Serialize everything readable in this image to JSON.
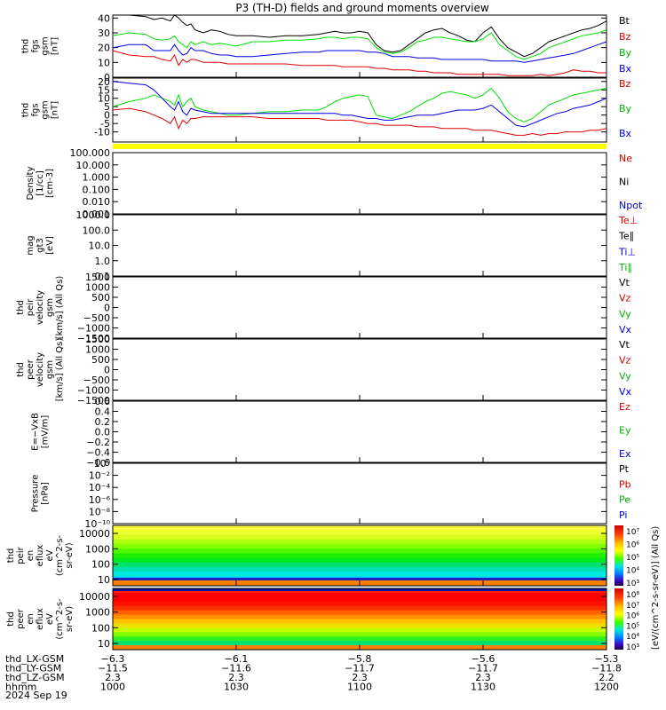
{
  "title": "P3 (TH-D) fields and ground moments overview",
  "date_label": "2024 Sep 19",
  "colors": {
    "black": "#000000",
    "red": "#e00000",
    "green": "#00e000",
    "blue": "#0000e0",
    "yellow": "#ffff00",
    "blue_label": "#0000d0",
    "green_label": "#00b000",
    "red_label": "#d00000"
  },
  "chart_data": [
    {
      "type": "line",
      "id": "fgs-total",
      "ylabel": [
        "thd",
        "fgs",
        "gsm",
        "[nT]"
      ],
      "ylim": [
        0,
        42
      ],
      "ticks": [
        "40",
        "30",
        "20",
        "10",
        "0"
      ],
      "tick_values": [
        40,
        30,
        20,
        10,
        0
      ],
      "legend": [
        "Bt",
        "Bz",
        "By",
        "Bx"
      ],
      "legend_colors": [
        "black",
        "red",
        "green",
        "blue"
      ],
      "x_minutes": [
        0,
        4,
        8,
        10,
        12,
        14,
        15,
        16,
        17,
        18,
        19,
        20,
        22,
        24,
        26,
        28,
        30,
        34,
        38,
        42,
        46,
        50,
        52,
        54,
        56,
        58,
        60,
        62,
        64,
        66,
        68,
        70,
        72,
        74,
        76,
        78,
        80,
        82,
        84,
        86,
        88,
        90,
        92,
        94,
        96,
        98,
        100,
        102,
        104,
        106,
        108,
        110,
        112,
        114,
        116,
        118,
        120
      ],
      "series": [
        {
          "name": "Bt",
          "color": "black",
          "values": [
            42,
            42,
            41,
            39,
            40,
            38,
            42,
            40,
            37,
            35,
            36,
            32,
            30,
            32,
            31,
            29,
            28,
            28,
            27,
            28,
            28,
            29,
            30,
            31,
            30,
            30,
            31,
            30,
            22,
            18,
            17,
            18,
            22,
            26,
            30,
            32,
            33,
            30,
            28,
            25,
            24,
            30,
            34,
            26,
            20,
            17,
            14,
            16,
            20,
            24,
            26,
            28,
            30,
            32,
            33,
            35,
            38
          ]
        },
        {
          "name": "By",
          "color": "green",
          "values": [
            28,
            30,
            29,
            26,
            25,
            26,
            28,
            24,
            22,
            20,
            24,
            22,
            24,
            22,
            23,
            22,
            21,
            24,
            24,
            25,
            25,
            26,
            27,
            27,
            26,
            27,
            27,
            26,
            20,
            17,
            16,
            17,
            20,
            24,
            25,
            27,
            27,
            26,
            25,
            24,
            24,
            26,
            30,
            22,
            18,
            14,
            12,
            14,
            16,
            20,
            22,
            24,
            26,
            28,
            29,
            30,
            32
          ]
        },
        {
          "name": "Bx",
          "color": "blue",
          "values": [
            20,
            22,
            22,
            18,
            18,
            18,
            22,
            18,
            15,
            16,
            20,
            18,
            18,
            16,
            15,
            15,
            14,
            14,
            15,
            16,
            17,
            17,
            18,
            18,
            18,
            18,
            18,
            17,
            17,
            16,
            14,
            14,
            14,
            13,
            13,
            13,
            12,
            12,
            12,
            12,
            12,
            12,
            11,
            11,
            11,
            11,
            10,
            11,
            12,
            13,
            14,
            15,
            16,
            18,
            20,
            22,
            24
          ]
        },
        {
          "name": "Bz",
          "color": "red",
          "values": [
            18,
            15,
            14,
            14,
            12,
            11,
            15,
            8,
            12,
            10,
            12,
            12,
            10,
            10,
            10,
            9,
            9,
            9,
            9,
            9,
            8,
            8,
            8,
            8,
            7,
            7,
            7,
            7,
            6,
            6,
            5,
            5,
            5,
            4,
            4,
            3,
            3,
            3,
            2,
            2,
            2,
            2,
            2,
            2,
            1,
            1,
            1,
            1,
            2,
            1,
            2,
            3,
            5,
            4,
            4,
            3,
            3
          ]
        }
      ]
    },
    {
      "type": "line",
      "id": "fgs-components",
      "ylabel": [
        "thd",
        "fgs",
        "gsm",
        "[nT]"
      ],
      "ylim": [
        -16,
        22
      ],
      "ticks": [
        "20",
        "15",
        "10",
        "5",
        "0",
        "-5",
        "-10"
      ],
      "tick_values": [
        20,
        15,
        10,
        5,
        0,
        -5,
        -10
      ],
      "legend": [
        "Bz",
        "By",
        "Bx"
      ],
      "legend_colors": [
        "red",
        "green",
        "blue"
      ],
      "x_minutes": [
        0,
        4,
        8,
        10,
        12,
        14,
        15,
        16,
        17,
        18,
        19,
        20,
        22,
        24,
        26,
        28,
        30,
        34,
        38,
        42,
        46,
        50,
        52,
        54,
        56,
        58,
        60,
        62,
        64,
        66,
        68,
        70,
        72,
        74,
        76,
        78,
        80,
        82,
        84,
        86,
        88,
        90,
        92,
        94,
        96,
        98,
        100,
        102,
        104,
        106,
        108,
        110,
        112,
        114,
        116,
        118,
        120
      ],
      "series": [
        {
          "name": "By",
          "color": "green",
          "values": [
            5,
            8,
            10,
            12,
            10,
            8,
            6,
            12,
            5,
            8,
            10,
            5,
            3,
            2,
            1,
            0,
            0,
            1,
            2,
            2,
            3,
            3,
            5,
            8,
            10,
            11,
            12,
            11,
            0,
            -1,
            -2,
            0,
            2,
            5,
            8,
            10,
            13,
            14,
            13,
            12,
            10,
            12,
            16,
            10,
            2,
            -2,
            -4,
            -2,
            2,
            6,
            8,
            10,
            12,
            13,
            14,
            15,
            16
          ]
        },
        {
          "name": "Bx",
          "color": "blue",
          "values": [
            20,
            19,
            18,
            15,
            10,
            5,
            3,
            8,
            2,
            0,
            4,
            3,
            2,
            1,
            1,
            1,
            1,
            1,
            1,
            1,
            1,
            1,
            1,
            1,
            0,
            0,
            -1,
            -2,
            -2,
            -3,
            -3,
            -2,
            -1,
            0,
            0,
            0,
            1,
            2,
            3,
            3,
            3,
            4,
            6,
            2,
            -2,
            -6,
            -7,
            -5,
            -3,
            -1,
            1,
            2,
            4,
            5,
            6,
            8,
            10
          ]
        },
        {
          "name": "Bz",
          "color": "red",
          "values": [
            3,
            4,
            2,
            0,
            -2,
            -5,
            -1,
            -8,
            -3,
            -5,
            -2,
            -2,
            -1,
            -1,
            -1,
            -1,
            -1,
            -1,
            -2,
            -2,
            -2,
            -2,
            -3,
            -3,
            -3,
            -3,
            -4,
            -5,
            -5,
            -6,
            -6,
            -6,
            -6,
            -7,
            -7,
            -7,
            -8,
            -8,
            -8,
            -8,
            -9,
            -9,
            -9,
            -10,
            -11,
            -12,
            -12,
            -11,
            -12,
            -11,
            -11,
            -10,
            -10,
            -10,
            -9,
            -9,
            -8
          ]
        }
      ]
    },
    {
      "type": "line",
      "id": "density",
      "ylabel": [
        "Density",
        "[1/cc]",
        "[cm-3]"
      ],
      "ticks": [
        "100.000",
        "10.000",
        "1.000",
        "0.100",
        "0.010",
        "0.001"
      ],
      "legend": [
        "Ne",
        "Ni",
        "Npot"
      ],
      "legend_colors": [
        "red",
        "black",
        "blue"
      ],
      "series": []
    },
    {
      "type": "line",
      "id": "temperature",
      "ylabel": [
        "mag",
        "gt3",
        "[eV]"
      ],
      "ticks": [
        "1000.0",
        "100.0",
        "10.0",
        "1.0",
        "0.1"
      ],
      "legend": [
        "Te⊥",
        "Te∥",
        "Ti⊥",
        "Ti∥"
      ],
      "legend_colors": [
        "red",
        "black",
        "blue",
        "green"
      ],
      "series": []
    },
    {
      "type": "line",
      "id": "peir-velocity",
      "ylabel": [
        "thd",
        "peir",
        "velocity",
        "gsm",
        "[km/s] (All Qs)"
      ],
      "ticks": [
        "1500",
        "1000",
        "500",
        "0",
        "−500",
        "−1000",
        "−1500"
      ],
      "legend": [
        "Vt",
        "Vz",
        "Vy",
        "Vx"
      ],
      "legend_colors": [
        "black",
        "red",
        "green",
        "blue"
      ],
      "series": []
    },
    {
      "type": "line",
      "id": "peer-velocity",
      "ylabel": [
        "thd",
        "peer",
        "velocity",
        "gsm",
        "[km/s] (All Qs)"
      ],
      "ticks": [
        "1500",
        "1000",
        "500",
        "0",
        "−500",
        "−1000",
        "−1500"
      ],
      "legend": [
        "Vt",
        "Vz",
        "Vy",
        "Vx"
      ],
      "legend_colors": [
        "black",
        "red",
        "green",
        "blue"
      ],
      "series": []
    },
    {
      "type": "line",
      "id": "efield",
      "ylabel": [
        "E=−VxB",
        "[mV/m]"
      ],
      "ticks": [
        "0.6",
        "0.4",
        "0.2",
        "0.0",
        "−0.2",
        "−0.4",
        "−0.6"
      ],
      "legend": [
        "Ez",
        "Ey",
        "Ex"
      ],
      "legend_colors": [
        "red",
        "green",
        "blue"
      ],
      "series": []
    },
    {
      "type": "line",
      "id": "pressure",
      "ylabel": [
        "Pressure",
        "[nPa]"
      ],
      "ticks": [
        "10⁰",
        "10⁻²",
        "10⁻⁴",
        "10⁻⁶",
        "10⁻⁸",
        "10⁻¹⁰"
      ],
      "legend": [
        "Pt",
        "Pb",
        "Pe",
        "Pi"
      ],
      "legend_colors": [
        "black",
        "red",
        "green",
        "blue"
      ],
      "series": []
    },
    {
      "type": "heatmap",
      "id": "peir-spectrogram",
      "ylabel": [
        "thd",
        "peir",
        "en",
        "eflux",
        "eV",
        "(cm^2-s-",
        "sr-eV)"
      ],
      "ticks": [
        "10000",
        "1000",
        "100",
        "10"
      ],
      "colorbar_label": "[eV/(cm^2-s-sr-eV)] (All Qs)",
      "colorbar_ticks": [
        "10⁷",
        "10⁶",
        "10⁵",
        "10⁴",
        "10³"
      ],
      "bands": [
        "#ffff40",
        "#f0ff30",
        "#d8ff20",
        "#b0ff10",
        "#80ff00",
        "#50f800",
        "#20f000",
        "#00e820",
        "#00e070",
        "#00e0b0",
        "#00e8e0",
        "#00d0ff",
        "#00a8ff"
      ]
    },
    {
      "type": "heatmap",
      "id": "peer-spectrogram",
      "ylabel": [
        "thd",
        "peer",
        "en",
        "eflux",
        "eV",
        "(cm^2-s-",
        "sr-eV)"
      ],
      "ticks": [
        "10000",
        "1000",
        "100",
        "10"
      ],
      "colorbar_label": "[eV/(cm^2-s-sr-eV)] (All Qs)",
      "colorbar_ticks": [
        "10⁸",
        "10⁷",
        "10⁶",
        "10⁵",
        "10⁴",
        "10³"
      ],
      "bands": [
        "#ff2000",
        "#ff0000",
        "#ff0000",
        "#ff1000",
        "#ff3000",
        "#ff6000",
        "#ff9000",
        "#ffc000",
        "#f0e000",
        "#c8ff00",
        "#80ff00",
        "#30f020",
        "#00e070",
        "#00d8c0"
      ]
    }
  ],
  "x_axis": {
    "rows": [
      {
        "label": "thd_LX-GSM",
        "values": [
          "−6.3",
          "−6.1",
          "−5.8",
          "−5.6",
          "−5.3"
        ]
      },
      {
        "label": "thd_LY-GSM",
        "values": [
          "−11.5",
          "−11.6",
          "−11.7",
          "−11.7",
          "−11.8"
        ]
      },
      {
        "label": "thd_LZ-GSM",
        "values": [
          "2.3",
          "2.3",
          "2.3",
          "2.3",
          "2.2"
        ]
      },
      {
        "label": "hhmm",
        "values": [
          "1000",
          "1030",
          "1100",
          "1130",
          "1200"
        ]
      }
    ],
    "tick_minutes": [
      0,
      30,
      60,
      90,
      120
    ]
  }
}
